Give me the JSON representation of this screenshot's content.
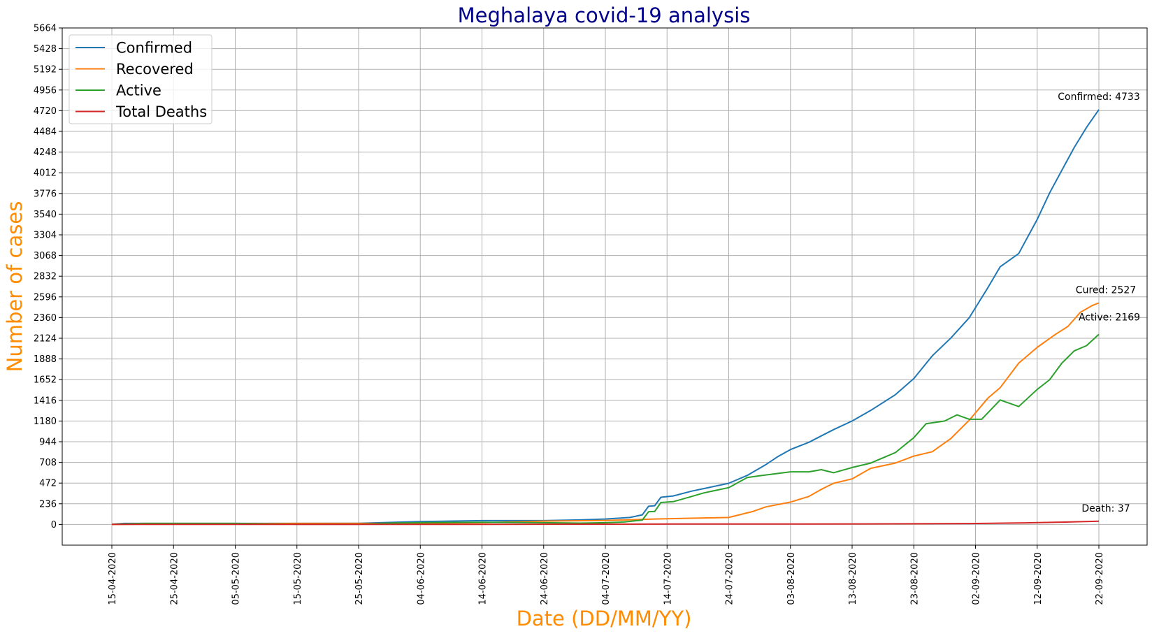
{
  "chart_data": {
    "type": "line",
    "title": "Meghalaya covid-19 analysis",
    "xlabel": "Date (DD/MM/YY)",
    "ylabel": "Number of cases",
    "x_start": "15-04-2020",
    "x_end": "22-09-2020",
    "xticks": [
      "15-04-2020",
      "25-04-2020",
      "05-05-2020",
      "15-05-2020",
      "25-05-2020",
      "04-06-2020",
      "14-06-2020",
      "24-06-2020",
      "04-07-2020",
      "14-07-2020",
      "24-07-2020",
      "03-08-2020",
      "13-08-2020",
      "23-08-2020",
      "02-09-2020",
      "12-09-2020",
      "22-09-2020"
    ],
    "yticks": [
      0,
      236,
      472,
      708,
      944,
      1180,
      1416,
      1652,
      1888,
      2124,
      2360,
      2596,
      2832,
      3068,
      3304,
      3540,
      3776,
      4012,
      4248,
      4484,
      4720,
      4956,
      5192,
      5428,
      5664
    ],
    "ylim": [
      -236,
      5664
    ],
    "grid": true,
    "legend_position": "top-left",
    "series": [
      {
        "name": "Confirmed",
        "color": "#1f77b4",
        "points": [
          [
            "15-04-2020",
            2
          ],
          [
            "17-04-2020",
            12
          ],
          [
            "01-05-2020",
            12
          ],
          [
            "05-05-2020",
            12
          ],
          [
            "15-05-2020",
            12
          ],
          [
            "25-05-2020",
            13
          ],
          [
            "01-06-2020",
            27
          ],
          [
            "04-06-2020",
            33
          ],
          [
            "14-06-2020",
            44
          ],
          [
            "24-06-2020",
            44
          ],
          [
            "30-06-2020",
            52
          ],
          [
            "04-07-2020",
            62
          ],
          [
            "08-07-2020",
            80
          ],
          [
            "10-07-2020",
            110
          ],
          [
            "11-07-2020",
            207
          ],
          [
            "12-07-2020",
            214
          ],
          [
            "13-07-2020",
            310
          ],
          [
            "15-07-2020",
            325
          ],
          [
            "18-07-2020",
            380
          ],
          [
            "20-07-2020",
            410
          ],
          [
            "24-07-2020",
            470
          ],
          [
            "27-07-2020",
            560
          ],
          [
            "30-07-2020",
            682
          ],
          [
            "01-08-2020",
            776
          ],
          [
            "03-08-2020",
            855
          ],
          [
            "06-08-2020",
            938
          ],
          [
            "08-08-2020",
            1010
          ],
          [
            "10-08-2020",
            1082
          ],
          [
            "13-08-2020",
            1180
          ],
          [
            "16-08-2020",
            1300
          ],
          [
            "20-08-2020",
            1480
          ],
          [
            "23-08-2020",
            1665
          ],
          [
            "26-08-2020",
            1924
          ],
          [
            "29-08-2020",
            2126
          ],
          [
            "01-09-2020",
            2360
          ],
          [
            "04-09-2020",
            2700
          ],
          [
            "06-09-2020",
            2940
          ],
          [
            "09-09-2020",
            3090
          ],
          [
            "12-09-2020",
            3480
          ],
          [
            "14-09-2020",
            3780
          ],
          [
            "16-09-2020",
            4040
          ],
          [
            "18-09-2020",
            4300
          ],
          [
            "20-09-2020",
            4530
          ],
          [
            "22-09-2020",
            4733
          ]
        ]
      },
      {
        "name": "Recovered",
        "color": "#ff7f0e",
        "points": [
          [
            "15-04-2020",
            0
          ],
          [
            "01-05-2020",
            10
          ],
          [
            "15-05-2020",
            12
          ],
          [
            "25-05-2020",
            12
          ],
          [
            "04-06-2020",
            12
          ],
          [
            "14-06-2020",
            20
          ],
          [
            "24-06-2020",
            38
          ],
          [
            "04-07-2020",
            45
          ],
          [
            "12-07-2020",
            62
          ],
          [
            "24-07-2020",
            80
          ],
          [
            "28-07-2020",
            150
          ],
          [
            "30-07-2020",
            200
          ],
          [
            "03-08-2020",
            255
          ],
          [
            "06-08-2020",
            320
          ],
          [
            "08-08-2020",
            400
          ],
          [
            "10-08-2020",
            470
          ],
          [
            "13-08-2020",
            520
          ],
          [
            "16-08-2020",
            640
          ],
          [
            "20-08-2020",
            700
          ],
          [
            "23-08-2020",
            780
          ],
          [
            "26-08-2020",
            830
          ],
          [
            "29-08-2020",
            980
          ],
          [
            "01-09-2020",
            1190
          ],
          [
            "04-09-2020",
            1440
          ],
          [
            "06-09-2020",
            1560
          ],
          [
            "09-09-2020",
            1840
          ],
          [
            "12-09-2020",
            2020
          ],
          [
            "15-09-2020",
            2170
          ],
          [
            "17-09-2020",
            2260
          ],
          [
            "19-09-2020",
            2420
          ],
          [
            "21-09-2020",
            2500
          ],
          [
            "22-09-2020",
            2527
          ]
        ]
      },
      {
        "name": "Active",
        "color": "#2ca02c",
        "points": [
          [
            "15-04-2020",
            2
          ],
          [
            "20-04-2020",
            12
          ],
          [
            "05-05-2020",
            12
          ],
          [
            "15-05-2020",
            2
          ],
          [
            "25-05-2020",
            2
          ],
          [
            "30-05-2020",
            15
          ],
          [
            "04-06-2020",
            20
          ],
          [
            "14-06-2020",
            25
          ],
          [
            "24-06-2020",
            20
          ],
          [
            "30-06-2020",
            15
          ],
          [
            "04-07-2020",
            20
          ],
          [
            "07-07-2020",
            28
          ],
          [
            "10-07-2020",
            50
          ],
          [
            "11-07-2020",
            145
          ],
          [
            "12-07-2020",
            148
          ],
          [
            "13-07-2020",
            250
          ],
          [
            "15-07-2020",
            260
          ],
          [
            "18-07-2020",
            320
          ],
          [
            "20-07-2020",
            360
          ],
          [
            "24-07-2020",
            420
          ],
          [
            "27-07-2020",
            535
          ],
          [
            "29-07-2020",
            555
          ],
          [
            "03-08-2020",
            600
          ],
          [
            "06-08-2020",
            600
          ],
          [
            "08-08-2020",
            625
          ],
          [
            "10-08-2020",
            590
          ],
          [
            "13-08-2020",
            650
          ],
          [
            "16-08-2020",
            700
          ],
          [
            "20-08-2020",
            820
          ],
          [
            "23-08-2020",
            990
          ],
          [
            "25-08-2020",
            1150
          ],
          [
            "28-08-2020",
            1180
          ],
          [
            "30-08-2020",
            1250
          ],
          [
            "01-09-2020",
            1200
          ],
          [
            "03-09-2020",
            1200
          ],
          [
            "06-09-2020",
            1420
          ],
          [
            "09-09-2020",
            1345
          ],
          [
            "12-09-2020",
            1540
          ],
          [
            "14-09-2020",
            1650
          ],
          [
            "16-09-2020",
            1840
          ],
          [
            "18-09-2020",
            1980
          ],
          [
            "20-09-2020",
            2040
          ],
          [
            "22-09-2020",
            2169
          ]
        ]
      },
      {
        "name": "Total Deaths",
        "color": "#d62728",
        "points": [
          [
            "15-04-2020",
            1
          ],
          [
            "15-05-2020",
            1
          ],
          [
            "15-06-2020",
            1
          ],
          [
            "15-07-2020",
            5
          ],
          [
            "01-08-2020",
            5
          ],
          [
            "15-08-2020",
            6
          ],
          [
            "01-09-2020",
            10
          ],
          [
            "10-09-2020",
            18
          ],
          [
            "15-09-2020",
            25
          ],
          [
            "22-09-2020",
            37
          ]
        ]
      }
    ],
    "annotations": [
      {
        "text": "Confirmed: 4733",
        "x": "22-09-2020",
        "y": 4733
      },
      {
        "text": "Cured: 2527",
        "x": "22-09-2020",
        "y": 2527
      },
      {
        "text": "Active: 2169",
        "x": "22-09-2020",
        "y": 2169
      },
      {
        "text": "Death: 37",
        "x": "22-09-2020",
        "y": 37
      }
    ]
  },
  "colors": {
    "title": "#00008b",
    "axis_titles": "#ff8c00",
    "grid": "#b0b0b0"
  }
}
